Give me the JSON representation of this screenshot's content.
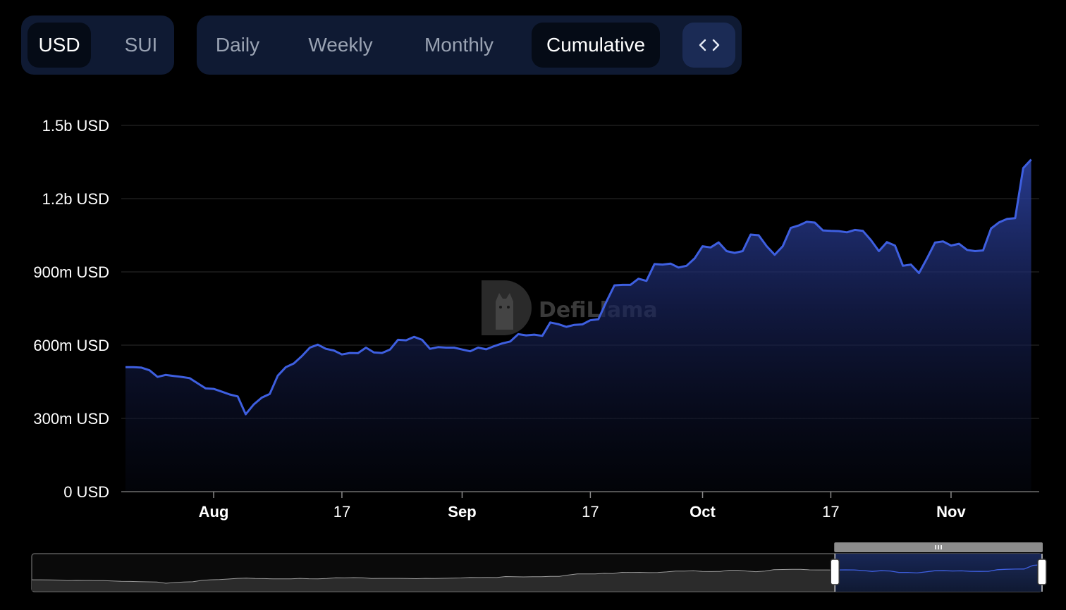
{
  "currency_toggle": {
    "options": [
      "USD",
      "SUI"
    ],
    "selected": "USD"
  },
  "period_toggle": {
    "options": [
      "Daily",
      "Weekly",
      "Monthly",
      "Cumulative"
    ],
    "selected": "Cumulative"
  },
  "embed_button": {
    "icon": "code-brackets-icon",
    "label": "<>"
  },
  "watermark": {
    "text": "DefiLlama"
  },
  "colors": {
    "line": "#3e5fe0",
    "grid": "#1e1e1e",
    "toggle_bg": "#0f1a33",
    "active_bg": "#050b16",
    "embed_bg": "#1b2b55"
  },
  "chart_data": {
    "type": "area",
    "ylim": [
      0,
      1500000000
    ],
    "y_ticks": [
      {
        "value": 0,
        "label": "0 USD"
      },
      {
        "value": 300000000,
        "label": "300m USD"
      },
      {
        "value": 600000000,
        "label": "600m USD"
      },
      {
        "value": 900000000,
        "label": "900m USD"
      },
      {
        "value": 1200000000,
        "label": "1.2b USD"
      },
      {
        "value": 1500000000,
        "label": "1.5b USD"
      }
    ],
    "x_start": "2024-07-21",
    "x_end": "2024-11-12",
    "x_ticks": [
      {
        "date": "2024-08-01",
        "label": "Aug",
        "major": true
      },
      {
        "date": "2024-08-17",
        "label": "17",
        "major": false
      },
      {
        "date": "2024-09-01",
        "label": "Sep",
        "major": true
      },
      {
        "date": "2024-09-17",
        "label": "17",
        "major": false
      },
      {
        "date": "2024-10-01",
        "label": "Oct",
        "major": true
      },
      {
        "date": "2024-10-17",
        "label": "17",
        "major": false
      },
      {
        "date": "2024-11-01",
        "label": "Nov",
        "major": true
      }
    ],
    "series": [
      {
        "values": [
          [
            "2024-07-21",
            510000000
          ],
          [
            "2024-07-22",
            510000000
          ],
          [
            "2024-07-23",
            508000000
          ],
          [
            "2024-07-24",
            497000000
          ],
          [
            "2024-07-25",
            470000000
          ],
          [
            "2024-07-26",
            478000000
          ],
          [
            "2024-07-27",
            474000000
          ],
          [
            "2024-07-28",
            470000000
          ],
          [
            "2024-07-29",
            465000000
          ],
          [
            "2024-07-30",
            444000000
          ],
          [
            "2024-07-31",
            423000000
          ],
          [
            "2024-08-01",
            421000000
          ],
          [
            "2024-08-02",
            410000000
          ],
          [
            "2024-08-03",
            398000000
          ],
          [
            "2024-08-04",
            390000000
          ],
          [
            "2024-08-05",
            317000000
          ],
          [
            "2024-08-06",
            357000000
          ],
          [
            "2024-08-07",
            385000000
          ],
          [
            "2024-08-08",
            400000000
          ],
          [
            "2024-08-09",
            475000000
          ],
          [
            "2024-08-10",
            510000000
          ],
          [
            "2024-08-11",
            525000000
          ],
          [
            "2024-08-12",
            555000000
          ],
          [
            "2024-08-13",
            590000000
          ],
          [
            "2024-08-14",
            602000000
          ],
          [
            "2024-08-15",
            585000000
          ],
          [
            "2024-08-16",
            578000000
          ],
          [
            "2024-08-17",
            562000000
          ],
          [
            "2024-08-18",
            568000000
          ],
          [
            "2024-08-19",
            567000000
          ],
          [
            "2024-08-20",
            590000000
          ],
          [
            "2024-08-21",
            570000000
          ],
          [
            "2024-08-22",
            568000000
          ],
          [
            "2024-08-23",
            582000000
          ],
          [
            "2024-08-24",
            622000000
          ],
          [
            "2024-08-25",
            620000000
          ],
          [
            "2024-08-26",
            634000000
          ],
          [
            "2024-08-27",
            622000000
          ],
          [
            "2024-08-28",
            585000000
          ],
          [
            "2024-08-29",
            592000000
          ],
          [
            "2024-08-30",
            590000000
          ],
          [
            "2024-08-31",
            590000000
          ],
          [
            "2024-09-01",
            582000000
          ],
          [
            "2024-09-02",
            575000000
          ],
          [
            "2024-09-03",
            590000000
          ],
          [
            "2024-09-04",
            583000000
          ],
          [
            "2024-09-05",
            596000000
          ],
          [
            "2024-09-06",
            607000000
          ],
          [
            "2024-09-07",
            615000000
          ],
          [
            "2024-09-08",
            645000000
          ],
          [
            "2024-09-09",
            640000000
          ],
          [
            "2024-09-10",
            643000000
          ],
          [
            "2024-09-11",
            638000000
          ],
          [
            "2024-09-12",
            693000000
          ],
          [
            "2024-09-13",
            686000000
          ],
          [
            "2024-09-14",
            675000000
          ],
          [
            "2024-09-15",
            683000000
          ],
          [
            "2024-09-16",
            685000000
          ],
          [
            "2024-09-17",
            702000000
          ],
          [
            "2024-09-18",
            706000000
          ],
          [
            "2024-09-19",
            778000000
          ],
          [
            "2024-09-20",
            845000000
          ],
          [
            "2024-09-21",
            847000000
          ],
          [
            "2024-09-22",
            847000000
          ],
          [
            "2024-09-23",
            872000000
          ],
          [
            "2024-09-24",
            863000000
          ],
          [
            "2024-09-25",
            932000000
          ],
          [
            "2024-09-26",
            930000000
          ],
          [
            "2024-09-27",
            934000000
          ],
          [
            "2024-09-28",
            918000000
          ],
          [
            "2024-09-29",
            925000000
          ],
          [
            "2024-09-30",
            955000000
          ],
          [
            "2024-10-01",
            1005000000
          ],
          [
            "2024-10-02",
            1000000000
          ],
          [
            "2024-10-03",
            1021000000
          ],
          [
            "2024-10-04",
            985000000
          ],
          [
            "2024-10-05",
            978000000
          ],
          [
            "2024-10-06",
            985000000
          ],
          [
            "2024-10-07",
            1053000000
          ],
          [
            "2024-10-08",
            1050000000
          ],
          [
            "2024-10-09",
            1005000000
          ],
          [
            "2024-10-10",
            970000000
          ],
          [
            "2024-10-11",
            1005000000
          ],
          [
            "2024-10-12",
            1080000000
          ],
          [
            "2024-10-13",
            1090000000
          ],
          [
            "2024-10-14",
            1105000000
          ],
          [
            "2024-10-15",
            1102000000
          ],
          [
            "2024-10-16",
            1070000000
          ],
          [
            "2024-10-17",
            1068000000
          ],
          [
            "2024-10-18",
            1067000000
          ],
          [
            "2024-10-19",
            1062000000
          ],
          [
            "2024-10-20",
            1072000000
          ],
          [
            "2024-10-21",
            1068000000
          ],
          [
            "2024-10-22",
            1030000000
          ],
          [
            "2024-10-23",
            985000000
          ],
          [
            "2024-10-24",
            1022000000
          ],
          [
            "2024-10-25",
            1008000000
          ],
          [
            "2024-10-26",
            925000000
          ],
          [
            "2024-10-27",
            930000000
          ],
          [
            "2024-10-28",
            895000000
          ],
          [
            "2024-10-29",
            955000000
          ],
          [
            "2024-10-30",
            1020000000
          ],
          [
            "2024-10-31",
            1025000000
          ],
          [
            "2024-11-01",
            1008000000
          ],
          [
            "2024-11-02",
            1015000000
          ],
          [
            "2024-11-03",
            990000000
          ],
          [
            "2024-11-04",
            985000000
          ],
          [
            "2024-11-05",
            988000000
          ],
          [
            "2024-11-06",
            1078000000
          ],
          [
            "2024-11-07",
            1103000000
          ],
          [
            "2024-11-08",
            1117000000
          ],
          [
            "2024-11-09",
            1120000000
          ],
          [
            "2024-11-10",
            1325000000
          ],
          [
            "2024-11-11",
            1360000000
          ]
        ]
      }
    ],
    "brush": {
      "selection_start": 0.795,
      "selection_end": 1.0
    }
  }
}
